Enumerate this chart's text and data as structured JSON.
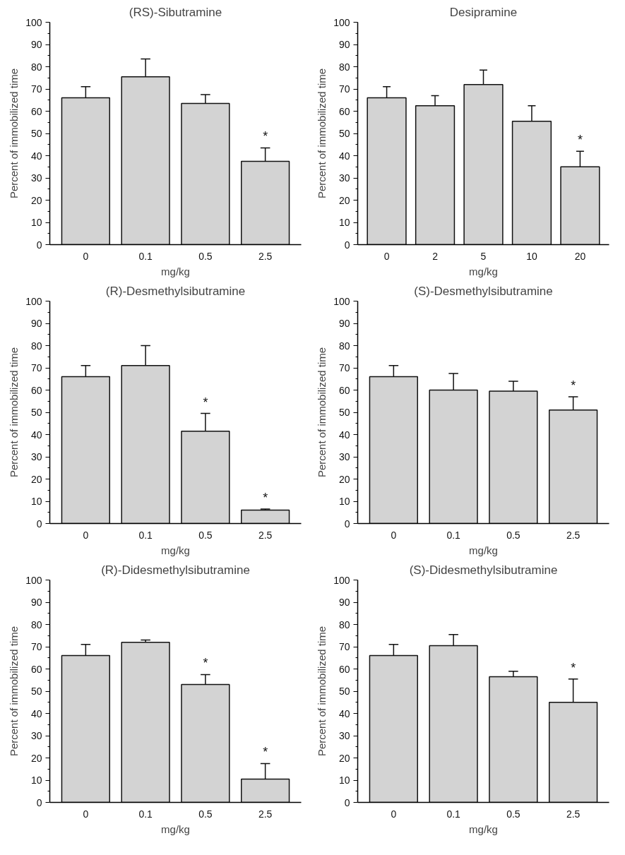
{
  "chart_data": [
    {
      "type": "bar",
      "title": "(RS)-Sibutramine",
      "xlabel": "mg/kg",
      "ylabel": "Percent of immobilized time",
      "categories": [
        "0",
        "0.1",
        "0.5",
        "2.5"
      ],
      "values": [
        66,
        75.5,
        63.5,
        37.5
      ],
      "errors": [
        [
          66,
          71
        ],
        [
          75.5,
          83.5
        ],
        [
          63.5,
          67.5
        ],
        [
          37.5,
          43.5
        ]
      ],
      "value_labels": [
        null,
        null,
        null,
        "*"
      ],
      "color": "#d3d3d3",
      "ylim": [
        0,
        100
      ],
      "yticks": [
        0,
        10,
        20,
        30,
        40,
        50,
        60,
        70,
        80,
        90,
        100
      ],
      "grid": false
    },
    {
      "type": "bar",
      "title": "Desipramine",
      "xlabel": "mg/kg",
      "ylabel": "Percent of immobilized time",
      "categories": [
        "0",
        "2",
        "5",
        "10",
        "20"
      ],
      "values": [
        66,
        62.5,
        72,
        55.5,
        35
      ],
      "errors": [
        [
          66,
          71
        ],
        [
          62.5,
          67
        ],
        [
          72,
          78.5
        ],
        [
          55.5,
          62.5
        ],
        [
          35,
          42
        ]
      ],
      "value_labels": [
        null,
        null,
        null,
        null,
        "*"
      ],
      "color": "#d3d3d3",
      "ylim": [
        0,
        100
      ],
      "yticks": [
        0,
        10,
        20,
        30,
        40,
        50,
        60,
        70,
        80,
        90,
        100
      ],
      "grid": false
    },
    {
      "type": "bar",
      "title": "(R)-Desmethylsibutramine",
      "xlabel": "mg/kg",
      "ylabel": "Percent of immobilized time",
      "categories": [
        "0",
        "0.1",
        "0.5",
        "2.5"
      ],
      "values": [
        66,
        71,
        41.5,
        6
      ],
      "errors": [
        [
          66,
          71
        ],
        [
          71,
          80
        ],
        [
          41.5,
          49.5
        ],
        [
          6,
          6.5
        ]
      ],
      "value_labels": [
        null,
        null,
        "*",
        "*"
      ],
      "color": "#d3d3d3",
      "ylim": [
        0,
        100
      ],
      "yticks": [
        0,
        10,
        20,
        30,
        40,
        50,
        60,
        70,
        80,
        90,
        100
      ],
      "grid": false
    },
    {
      "type": "bar",
      "title": "(S)-Desmethylsibutramine",
      "xlabel": "mg/kg",
      "ylabel": "Percent of immobilized time",
      "categories": [
        "0",
        "0.1",
        "0.5",
        "2.5"
      ],
      "values": [
        66,
        60,
        59.5,
        51
      ],
      "errors": [
        [
          66,
          71
        ],
        [
          60,
          67.5
        ],
        [
          59.5,
          64
        ],
        [
          51,
          57
        ]
      ],
      "value_labels": [
        null,
        null,
        null,
        "*"
      ],
      "color": "#d3d3d3",
      "ylim": [
        0,
        100
      ],
      "yticks": [
        0,
        10,
        20,
        30,
        40,
        50,
        60,
        70,
        80,
        90,
        100
      ],
      "grid": false
    },
    {
      "type": "bar",
      "title": "(R)-Didesmethylsibutramine",
      "xlabel": "mg/kg",
      "ylabel": "Percent of immobilized time",
      "categories": [
        "0",
        "0.1",
        "0.5",
        "2.5"
      ],
      "values": [
        66,
        72,
        53,
        10.5
      ],
      "errors": [
        [
          66,
          71
        ],
        [
          72,
          73
        ],
        [
          53,
          57.5
        ],
        [
          10.5,
          17.5
        ]
      ],
      "value_labels": [
        null,
        null,
        "*",
        "*"
      ],
      "color": "#d3d3d3",
      "ylim": [
        0,
        100
      ],
      "yticks": [
        0,
        10,
        20,
        30,
        40,
        50,
        60,
        70,
        80,
        90,
        100
      ],
      "grid": false
    },
    {
      "type": "bar",
      "title": "(S)-Didesmethylsibutramine",
      "xlabel": "mg/kg",
      "ylabel": "Percent of immobilized time",
      "categories": [
        "0",
        "0.1",
        "0.5",
        "2.5"
      ],
      "values": [
        66,
        70.5,
        56.5,
        45
      ],
      "errors": [
        [
          66,
          71
        ],
        [
          70.5,
          75.5
        ],
        [
          56.5,
          59
        ],
        [
          45,
          55.5
        ]
      ],
      "value_labels": [
        null,
        null,
        null,
        "*"
      ],
      "color": "#d3d3d3",
      "ylim": [
        0,
        100
      ],
      "yticks": [
        0,
        10,
        20,
        30,
        40,
        50,
        60,
        70,
        80,
        90,
        100
      ],
      "grid": false
    }
  ]
}
